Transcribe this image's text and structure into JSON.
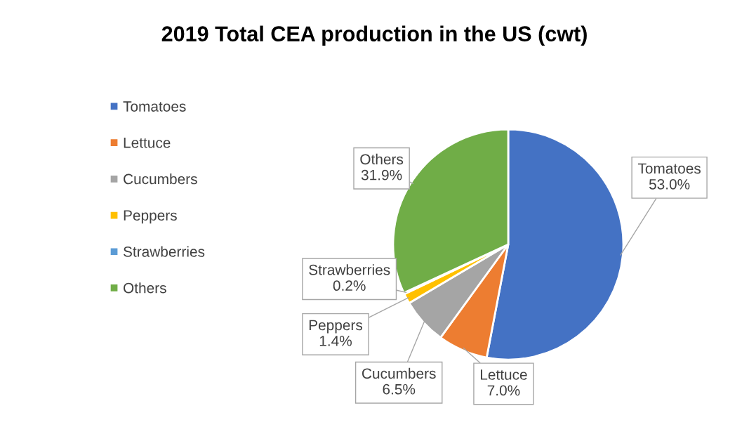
{
  "chart_data": {
    "type": "pie",
    "title": "2019 Total CEA production in the US (cwt)",
    "categories": [
      "Tomatoes",
      "Lettuce",
      "Cucumbers",
      "Peppers",
      "Strawberries",
      "Others"
    ],
    "values": [
      53.0,
      7.0,
      6.5,
      1.4,
      0.2,
      31.9
    ],
    "colors": [
      "#4472c4",
      "#ed7d31",
      "#a5a5a5",
      "#ffc000",
      "#5b9bd5",
      "#70ad47"
    ],
    "value_labels": [
      "53.0%",
      "7.0%",
      "6.5%",
      "1.4%",
      "0.2%",
      "31.9%"
    ],
    "legend": "left"
  }
}
